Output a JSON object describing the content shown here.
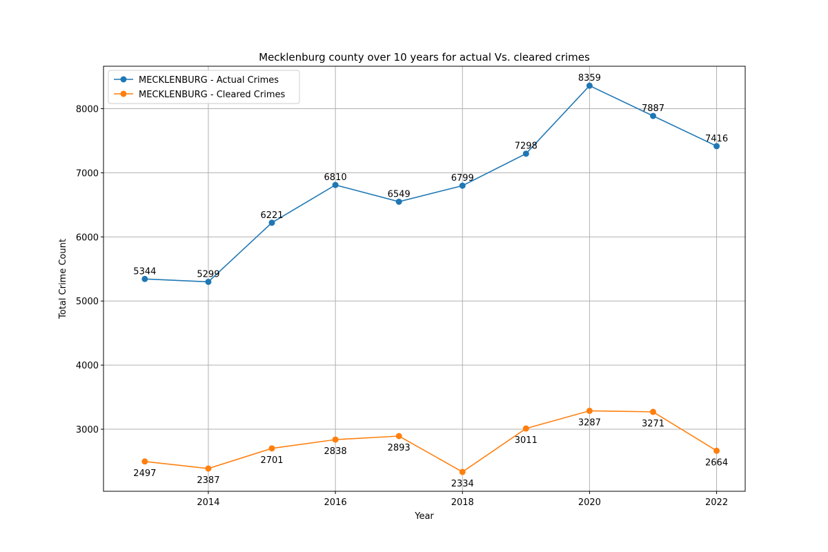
{
  "chart_data": {
    "type": "line",
    "title": "Mecklenburg county over 10 years for actual Vs. cleared crimes",
    "xlabel": "Year",
    "ylabel": "Total Crime Count",
    "x": [
      2013,
      2014,
      2015,
      2016,
      2017,
      2018,
      2019,
      2020,
      2021,
      2022
    ],
    "x_ticks": [
      2014,
      2016,
      2018,
      2020,
      2022
    ],
    "y_ticks": [
      3000,
      4000,
      5000,
      6000,
      7000,
      8000
    ],
    "xlim": [
      2012.35,
      2022.45
    ],
    "ylim": [
      2032,
      8662
    ],
    "grid": true,
    "legend_position": "top-left",
    "series": [
      {
        "name": "MECKLENBURG - Actual Crimes",
        "color": "#1f77b4",
        "label_position": "above",
        "values": [
          5344,
          5299,
          6221,
          6810,
          6549,
          6799,
          7298,
          8359,
          7887,
          7416
        ]
      },
      {
        "name": "MECKLENBURG - Cleared Crimes",
        "color": "#ff7f0e",
        "label_position": "below",
        "values": [
          2497,
          2387,
          2701,
          2838,
          2893,
          2334,
          3011,
          3287,
          3271,
          2664
        ]
      }
    ]
  }
}
